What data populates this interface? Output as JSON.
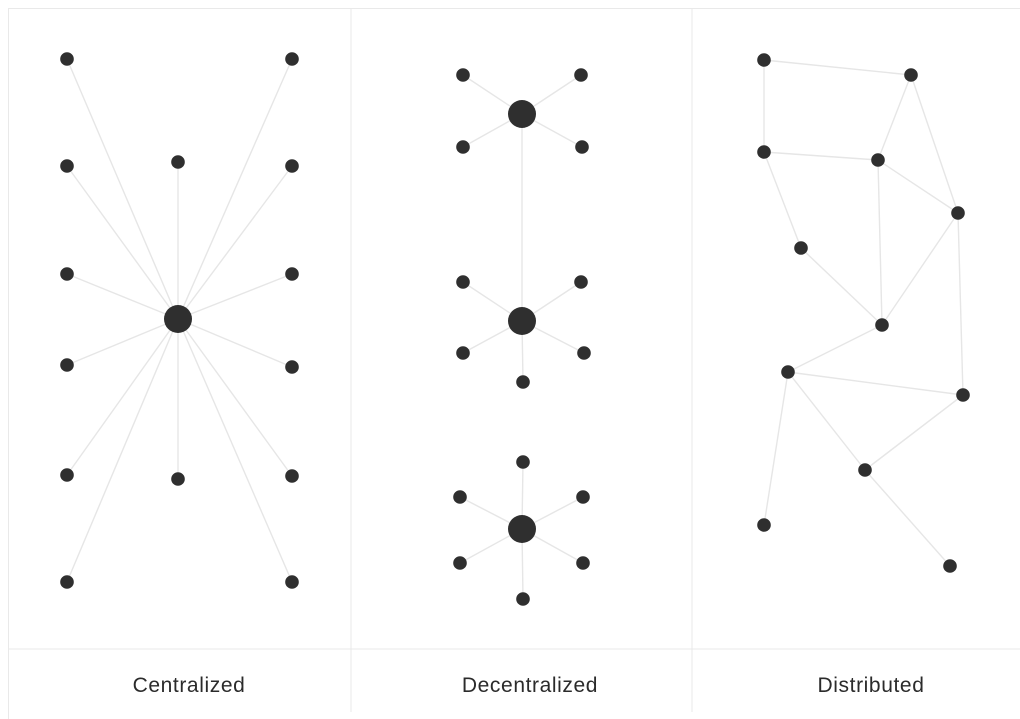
{
  "panels": [
    {
      "label": "Centralized",
      "nodes": [
        {
          "id": "hub",
          "r": "hub"
        },
        {
          "id": "l1"
        },
        {
          "id": "l2"
        },
        {
          "id": "l3"
        },
        {
          "id": "l4"
        },
        {
          "id": "l5"
        },
        {
          "id": "l6"
        },
        {
          "id": "r1"
        },
        {
          "id": "r2"
        },
        {
          "id": "r3"
        },
        {
          "id": "r4"
        },
        {
          "id": "r5"
        },
        {
          "id": "r6"
        },
        {
          "id": "top"
        },
        {
          "id": "bottom"
        }
      ],
      "edges": [
        [
          "hub",
          "l1"
        ],
        [
          "hub",
          "l2"
        ],
        [
          "hub",
          "l3"
        ],
        [
          "hub",
          "l4"
        ],
        [
          "hub",
          "l5"
        ],
        [
          "hub",
          "l6"
        ],
        [
          "hub",
          "r1"
        ],
        [
          "hub",
          "r2"
        ],
        [
          "hub",
          "r3"
        ],
        [
          "hub",
          "r4"
        ],
        [
          "hub",
          "r5"
        ],
        [
          "hub",
          "r6"
        ],
        [
          "hub",
          "top"
        ],
        [
          "hub",
          "bottom"
        ]
      ]
    },
    {
      "label": "Decentralized",
      "nodes": [
        {
          "id": "h1",
          "r": "hub"
        },
        {
          "id": "h2",
          "r": "hub"
        },
        {
          "id": "h3",
          "r": "hub"
        },
        {
          "id": "a1"
        },
        {
          "id": "a2"
        },
        {
          "id": "a3"
        },
        {
          "id": "a4"
        },
        {
          "id": "b1"
        },
        {
          "id": "b2"
        },
        {
          "id": "b3"
        },
        {
          "id": "b4"
        },
        {
          "id": "b5"
        },
        {
          "id": "c1"
        },
        {
          "id": "c2"
        },
        {
          "id": "c3"
        },
        {
          "id": "c4"
        },
        {
          "id": "c5"
        },
        {
          "id": "c6"
        }
      ],
      "edges": [
        [
          "h1",
          "a1"
        ],
        [
          "h1",
          "a2"
        ],
        [
          "h1",
          "a3"
        ],
        [
          "h1",
          "a4"
        ],
        [
          "h1",
          "h2"
        ],
        [
          "h2",
          "b1"
        ],
        [
          "h2",
          "b2"
        ],
        [
          "h2",
          "b3"
        ],
        [
          "h2",
          "b4"
        ],
        [
          "h2",
          "b5"
        ],
        [
          "h3",
          "c1"
        ],
        [
          "h3",
          "c2"
        ],
        [
          "h3",
          "c3"
        ],
        [
          "h3",
          "c4"
        ],
        [
          "h3",
          "c5"
        ],
        [
          "h3",
          "c6"
        ]
      ]
    },
    {
      "label": "Distributed",
      "nodes": [
        {
          "id": "n1"
        },
        {
          "id": "n2"
        },
        {
          "id": "n3"
        },
        {
          "id": "n4"
        },
        {
          "id": "n5"
        },
        {
          "id": "n6"
        },
        {
          "id": "n7"
        },
        {
          "id": "n8"
        },
        {
          "id": "n9"
        },
        {
          "id": "n10"
        },
        {
          "id": "n11"
        },
        {
          "id": "n12"
        },
        {
          "id": "n13"
        }
      ],
      "edges": [
        [
          "n1",
          "n2"
        ],
        [
          "n1",
          "n3"
        ],
        [
          "n3",
          "n4"
        ],
        [
          "n2",
          "n4"
        ],
        [
          "n2",
          "n5"
        ],
        [
          "n3",
          "n6"
        ],
        [
          "n4",
          "n7"
        ],
        [
          "n4",
          "n5"
        ],
        [
          "n5",
          "n7"
        ],
        [
          "n6",
          "n7"
        ],
        [
          "n7",
          "n8"
        ],
        [
          "n5",
          "n9"
        ],
        [
          "n8",
          "n9"
        ],
        [
          "n8",
          "n10"
        ],
        [
          "n8",
          "n11"
        ],
        [
          "n9",
          "n10"
        ],
        [
          "n10",
          "n12"
        ],
        [
          "n9",
          "n13"
        ],
        [
          "n10",
          "n13"
        ]
      ]
    }
  ],
  "colors": {
    "node": "#2f2f2f",
    "edge": "#e6e6e6",
    "divider": "#e9e9e9",
    "caption": "#2b2b2b"
  }
}
